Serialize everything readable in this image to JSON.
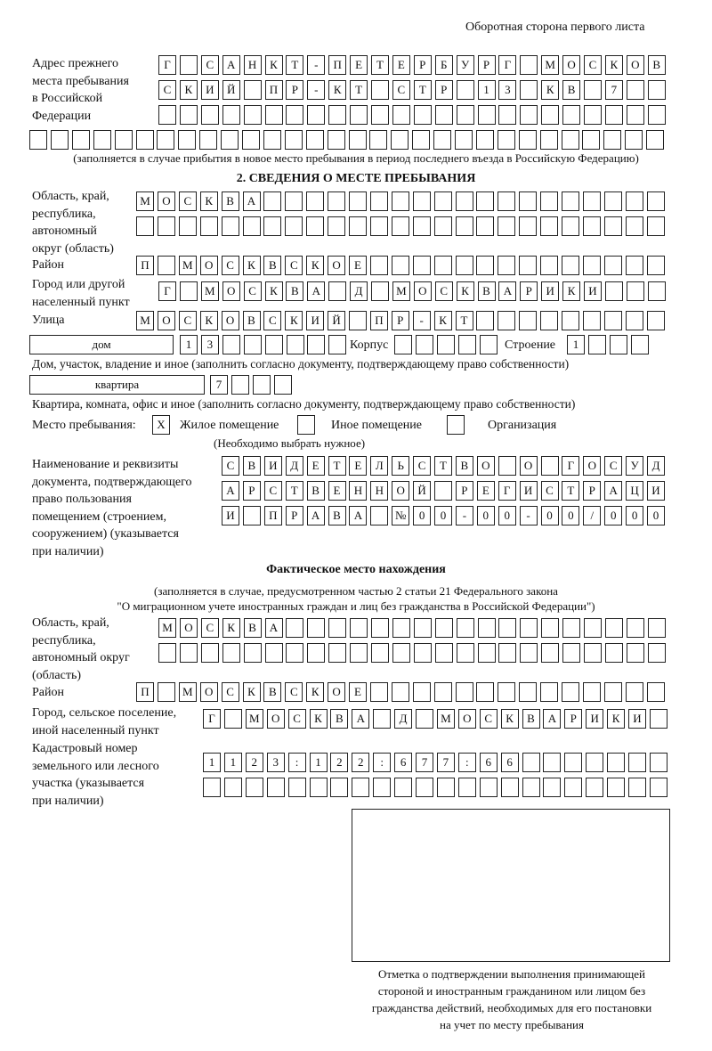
{
  "header": "Оборотная сторона первого листа",
  "prev_address": {
    "label": "Адрес прежнего\nместа пребывания\nв Российской\nФедерации",
    "rows": [
      [
        "Г",
        "",
        "С",
        "А",
        "Н",
        "К",
        "Т",
        "-",
        "П",
        "Е",
        "Т",
        "Е",
        "Р",
        "Б",
        "У",
        "Р",
        "Г",
        "",
        "М",
        "О",
        "С",
        "К",
        "О",
        "В"
      ],
      [
        "С",
        "К",
        "И",
        "Й",
        "",
        "П",
        "Р",
        "-",
        "К",
        "Т",
        "",
        "С",
        "Т",
        "Р",
        "",
        "1",
        "3",
        "",
        "К",
        "В",
        "",
        "7",
        "",
        ""
      ],
      [
        "",
        "",
        "",
        "",
        "",
        "",
        "",
        "",
        "",
        "",
        "",
        "",
        "",
        "",
        "",
        "",
        "",
        "",
        "",
        "",
        "",
        "",
        "",
        ""
      ],
      [
        "",
        "",
        "",
        "",
        "",
        "",
        "",
        "",
        "",
        "",
        "",
        "",
        "",
        "",
        "",
        "",
        "",
        "",
        "",
        "",
        "",
        "",
        "",
        "",
        "",
        "",
        "",
        "",
        "",
        ""
      ]
    ],
    "note": "(заполняется в случае прибытия в новое место пребывания в период последнего въезда в Российскую Федерацию)"
  },
  "section2": {
    "title": "2. СВЕДЕНИЯ О МЕСТЕ ПРЕБЫВАНИЯ",
    "region_label": "Область, край,\nреспублика,\nавтономный\nокруг (область)",
    "region_rows": [
      [
        "М",
        "О",
        "С",
        "К",
        "В",
        "А",
        "",
        "",
        "",
        "",
        "",
        "",
        "",
        "",
        "",
        "",
        "",
        "",
        "",
        "",
        "",
        "",
        "",
        "",
        ""
      ],
      [
        "",
        "",
        "",
        "",
        "",
        "",
        "",
        "",
        "",
        "",
        "",
        "",
        "",
        "",
        "",
        "",
        "",
        "",
        "",
        "",
        "",
        "",
        "",
        "",
        ""
      ]
    ],
    "district_label": "Район",
    "district": [
      "П",
      "",
      "М",
      "О",
      "С",
      "К",
      "В",
      "С",
      "К",
      "О",
      "Е",
      "",
      "",
      "",
      "",
      "",
      "",
      "",
      "",
      "",
      "",
      "",
      "",
      "",
      ""
    ],
    "city_label": "Город или другой\nнаселенный пункт",
    "city": [
      "Г",
      "",
      "М",
      "О",
      "С",
      "К",
      "В",
      "А",
      "",
      "Д",
      "",
      "М",
      "О",
      "С",
      "К",
      "В",
      "А",
      "Р",
      "И",
      "К",
      "И",
      "",
      "",
      ""
    ],
    "street_label": "Улица",
    "street": [
      "М",
      "О",
      "С",
      "К",
      "О",
      "В",
      "С",
      "К",
      "И",
      "Й",
      "",
      "П",
      "Р",
      "-",
      "К",
      "Т",
      "",
      "",
      "",
      "",
      "",
      "",
      "",
      "",
      ""
    ],
    "house_type": "дом",
    "house": [
      "1",
      "3",
      "",
      "",
      "",
      "",
      "",
      ""
    ],
    "korpus_label": "Корпус",
    "korpus": [
      "",
      "",
      "",
      "",
      ""
    ],
    "building_label": "Строение",
    "building": [
      "1",
      "",
      "",
      ""
    ],
    "house_note": "Дом, участок, владение и иное (заполнить согласно документу, подтверждающему право собственности)",
    "flat_type": "квартира",
    "flat": [
      "7",
      "",
      "",
      ""
    ],
    "flat_note": "Квартира, комната, офис и иное (заполнить согласно документу, подтверждающему право собственности)",
    "place_label": "Место пребывания:",
    "place_options": [
      {
        "label": "Жилое помещение",
        "mark": "X"
      },
      {
        "label": "Иное помещение",
        "mark": ""
      },
      {
        "label": "Организация",
        "mark": ""
      }
    ],
    "place_note": "(Необходимо выбрать нужное)",
    "doc_label": "Наименование и реквизиты\nдокумента, подтверждающего\nправо пользования\nпомещением (строением,\nсооружением) (указывается\nпри наличии)",
    "doc_rows": [
      [
        "С",
        "В",
        "И",
        "Д",
        "Е",
        "Т",
        "Е",
        "Л",
        "Ь",
        "С",
        "Т",
        "В",
        "О",
        "",
        "О",
        "",
        "Г",
        "О",
        "С",
        "У",
        "Д"
      ],
      [
        "А",
        "Р",
        "С",
        "Т",
        "В",
        "Е",
        "Н",
        "Н",
        "О",
        "Й",
        "",
        "Р",
        "Е",
        "Г",
        "И",
        "С",
        "Т",
        "Р",
        "А",
        "Ц",
        "И"
      ],
      [
        "И",
        "",
        "П",
        "Р",
        "А",
        "В",
        "А",
        "",
        "№",
        "0",
        "0",
        "-",
        "0",
        "0",
        "-",
        "0",
        "0",
        "/",
        "0",
        "0",
        "0"
      ]
    ]
  },
  "actual": {
    "title": "Фактическое место нахождения",
    "note1": "(заполняется в случае, предусмотренном частью 2 статьи 21 Федерального закона",
    "note2": "\"О миграционном учете иностранных граждан и лиц без гражданства в Российской Федерации\")",
    "region_label": "Область, край,\nреспублика,\nавтономный округ\n(область)",
    "region_rows": [
      [
        "М",
        "О",
        "С",
        "К",
        "В",
        "А",
        "",
        "",
        "",
        "",
        "",
        "",
        "",
        "",
        "",
        "",
        "",
        "",
        "",
        "",
        "",
        "",
        "",
        ""
      ],
      [
        "",
        "",
        "",
        "",
        "",
        "",
        "",
        "",
        "",
        "",
        "",
        "",
        "",
        "",
        "",
        "",
        "",
        "",
        "",
        "",
        "",
        "",
        "",
        ""
      ]
    ],
    "district_label": "Район",
    "district": [
      "П",
      "",
      "М",
      "О",
      "С",
      "К",
      "В",
      "С",
      "К",
      "О",
      "Е",
      "",
      "",
      "",
      "",
      "",
      "",
      "",
      "",
      "",
      "",
      "",
      "",
      "",
      ""
    ],
    "city_label": "Город, сельское поселение,\nиной населенный пункт",
    "city": [
      "Г",
      "",
      "М",
      "О",
      "С",
      "К",
      "В",
      "А",
      "",
      "Д",
      "",
      "М",
      "О",
      "С",
      "К",
      "В",
      "А",
      "Р",
      "И",
      "К",
      "И",
      ""
    ],
    "cadastre_label": "Кадастровый номер\nземельного или лесного\nучастка (указывается\nпри наличии)",
    "cadastre_rows": [
      [
        "1",
        "1",
        "2",
        "3",
        ":",
        "1",
        "2",
        "2",
        ":",
        "6",
        "7",
        "7",
        ":",
        "6",
        "6",
        "",
        "",
        "",
        "",
        "",
        "",
        ""
      ],
      [
        "",
        "",
        "",
        "",
        "",
        "",
        "",
        "",
        "",
        "",
        "",
        "",
        "",
        "",
        "",
        "",
        "",
        "",
        "",
        "",
        "",
        ""
      ]
    ]
  },
  "stamp_caption": "Отметка о подтверждении выполнения принимающей\nстороной и иностранным гражданином или лицом без\nгражданства действий, необходимых для его постановки\nна учет по месту пребывания"
}
